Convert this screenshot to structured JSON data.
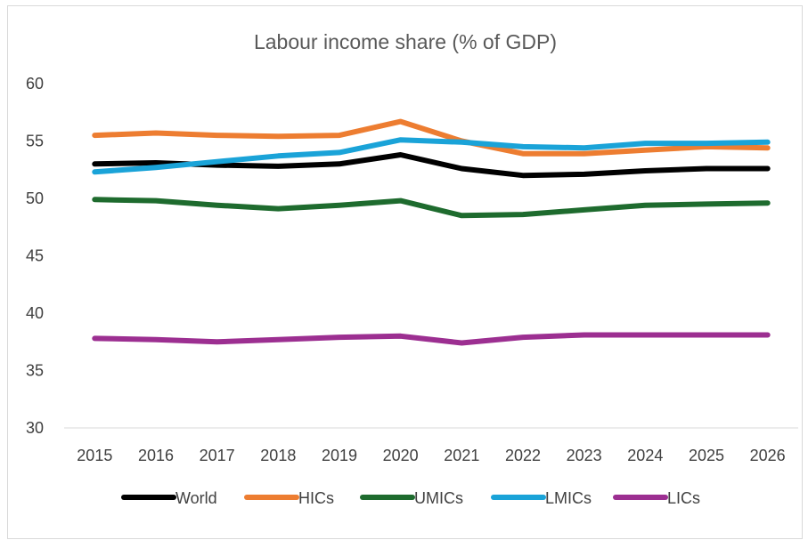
{
  "chart_data": {
    "type": "line",
    "title": "Labour income share (% of GDP)",
    "xlabel": "",
    "ylabel": "",
    "ylim": [
      30,
      60
    ],
    "yticks": [
      30,
      35,
      40,
      45,
      50,
      55,
      60
    ],
    "grid": false,
    "legend_position": "bottom",
    "categories": [
      "2015",
      "2016",
      "2017",
      "2018",
      "2019",
      "2020",
      "2021",
      "2022",
      "2023",
      "2024",
      "2025",
      "2026"
    ],
    "series": [
      {
        "name": "World",
        "color": "#000000",
        "values": [
          53.0,
          53.1,
          52.9,
          52.8,
          53.0,
          53.8,
          52.6,
          52.0,
          52.1,
          52.4,
          52.6,
          52.6
        ]
      },
      {
        "name": "HICs",
        "color": "#ED7D31",
        "values": [
          55.5,
          55.7,
          55.5,
          55.4,
          55.5,
          56.7,
          55.0,
          53.9,
          53.9,
          54.2,
          54.5,
          54.4
        ]
      },
      {
        "name": "UMICs",
        "color": "#1E6B2E",
        "values": [
          49.9,
          49.8,
          49.4,
          49.1,
          49.4,
          49.8,
          48.5,
          48.6,
          49.0,
          49.4,
          49.5,
          49.6
        ]
      },
      {
        "name": "LMICs",
        "color": "#1AA3D8",
        "values": [
          52.3,
          52.7,
          53.2,
          53.7,
          54.0,
          55.1,
          54.9,
          54.5,
          54.4,
          54.8,
          54.8,
          54.9
        ]
      },
      {
        "name": "LICs",
        "color": "#9C2F91",
        "values": [
          37.8,
          37.7,
          37.5,
          37.7,
          37.9,
          38.0,
          37.4,
          37.9,
          38.1,
          38.1,
          38.1,
          38.1
        ]
      }
    ]
  }
}
